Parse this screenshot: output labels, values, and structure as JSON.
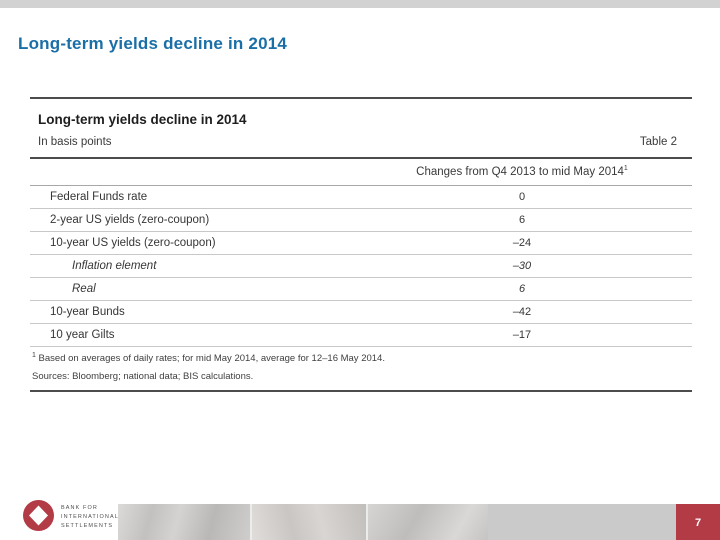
{
  "slide": {
    "header_title": "Long-term yields decline in 2014"
  },
  "table": {
    "title": "Long-term yields decline in 2014",
    "unit_note": "In basis points",
    "table_label": "Table 2",
    "column_header": "Changes from Q4 2013 to mid May 2014",
    "column_header_footnote_ref": "1",
    "rows": [
      {
        "label": "Federal Funds rate",
        "value": "0"
      },
      {
        "label": "2-year US yields (zero-coupon)",
        "value": "6"
      },
      {
        "label": "10-year US yields (zero-coupon)",
        "value": "–24"
      },
      {
        "label": "Inflation element",
        "value": "–30"
      },
      {
        "label": "Real",
        "value": "6"
      },
      {
        "label": "10-year Bunds",
        "value": "–42"
      },
      {
        "label": "10 year Gilts",
        "value": "–17"
      }
    ],
    "footnote_ref": "1",
    "footnote": "Based on averages of daily rates; for mid May 2014, average for 12–16 May 2014.",
    "sources": "Sources: Bloomberg; national data; BIS calculations."
  },
  "footer": {
    "logo_line1": "BANK FOR",
    "logo_line2": "INTERNATIONAL",
    "logo_line3": "SETTLEMENTS",
    "page_number": "7"
  },
  "colors": {
    "title_blue": "#1a6fa6",
    "bis_red": "#b23b46",
    "top_bar_gray": "#d2d2d2"
  },
  "chart_data": {
    "type": "table",
    "title": "Long-term yields decline in 2014",
    "subtitle": "In basis points",
    "table_label": "Table 2",
    "columns": [
      "",
      "Changes from Q4 2013 to mid May 2014¹"
    ],
    "rows": [
      [
        "Federal Funds rate",
        0
      ],
      [
        "2-year US yields (zero-coupon)",
        6
      ],
      [
        "10-year US yields (zero-coupon)",
        -24
      ],
      [
        "Inflation element",
        -30
      ],
      [
        "Real",
        6
      ],
      [
        "10-year Bunds",
        -42
      ],
      [
        "10 year Gilts",
        -17
      ]
    ],
    "footnote": "1 Based on averages of daily rates; for mid May 2014, average for 12–16 May 2014.",
    "sources": "Sources: Bloomberg; national data; BIS calculations."
  }
}
